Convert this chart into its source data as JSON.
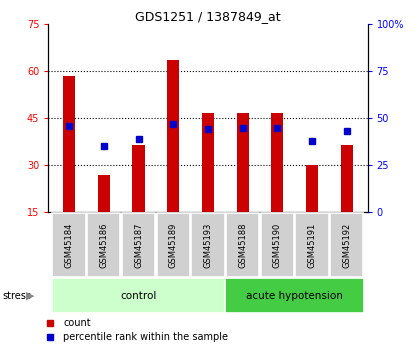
{
  "title": "GDS1251 / 1387849_at",
  "samples": [
    "GSM45184",
    "GSM45186",
    "GSM45187",
    "GSM45189",
    "GSM45193",
    "GSM45188",
    "GSM45190",
    "GSM45191",
    "GSM45192"
  ],
  "counts": [
    58.5,
    27.0,
    36.5,
    63.5,
    46.5,
    46.5,
    46.5,
    30.0,
    36.5
  ],
  "percentiles": [
    46,
    35,
    39,
    47,
    44,
    45,
    45,
    38,
    43
  ],
  "groups": [
    {
      "label": "control",
      "start": 0,
      "end": 5,
      "color": "#bbffbb"
    },
    {
      "label": "acute hypotension",
      "start": 5,
      "end": 9,
      "color": "#44dd44"
    }
  ],
  "ylim_left": [
    15,
    75
  ],
  "ylim_right": [
    0,
    100
  ],
  "yticks_left": [
    15,
    30,
    45,
    60,
    75
  ],
  "yticks_right": [
    0,
    25,
    50,
    75,
    100
  ],
  "ytick_labels_right": [
    "0",
    "25",
    "50",
    "75",
    "100%"
  ],
  "bar_color": "#cc0000",
  "marker_color": "#0000cc",
  "bar_width": 0.35,
  "marker_size": 5,
  "sample_box_color": "#cccccc",
  "control_color": "#ccffcc",
  "acute_color": "#44cc44"
}
